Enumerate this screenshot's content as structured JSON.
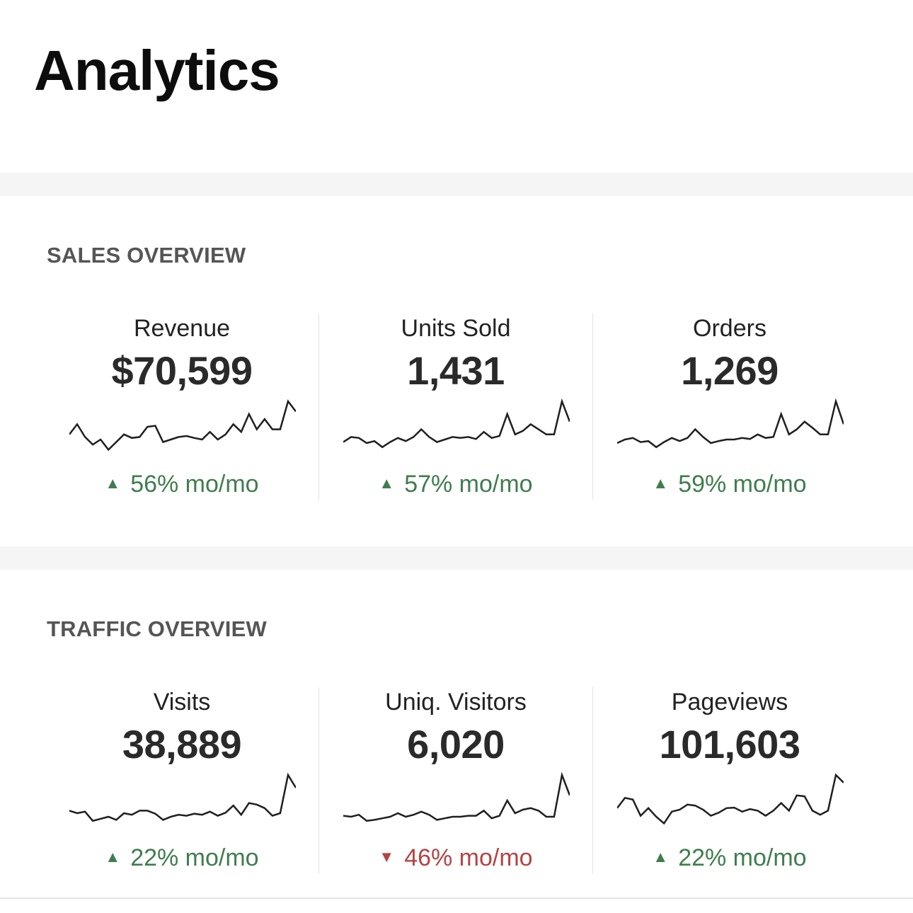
{
  "page": {
    "title": "Analytics"
  },
  "sections": [
    {
      "title": "SALES OVERVIEW",
      "metrics": [
        {
          "label": "Revenue",
          "value": "$70,599",
          "direction": "up",
          "arrow": "▲",
          "change": "56% mo/mo",
          "trend": [
            0.35,
            0.55,
            0.3,
            0.15,
            0.25,
            0.05,
            0.2,
            0.35,
            0.28,
            0.3,
            0.5,
            0.52,
            0.2,
            0.25,
            0.3,
            0.32,
            0.28,
            0.25,
            0.4,
            0.25,
            0.35,
            0.55,
            0.4,
            0.75,
            0.45,
            0.65,
            0.45,
            0.45,
            1.0,
            0.8
          ]
        },
        {
          "label": "Units Sold",
          "value": "1,431",
          "direction": "up",
          "arrow": "▲",
          "change": "57% mo/mo",
          "trend": [
            0.2,
            0.3,
            0.28,
            0.18,
            0.22,
            0.1,
            0.2,
            0.28,
            0.22,
            0.3,
            0.45,
            0.3,
            0.2,
            0.25,
            0.3,
            0.28,
            0.3,
            0.26,
            0.4,
            0.28,
            0.32,
            0.75,
            0.35,
            0.42,
            0.55,
            0.45,
            0.35,
            0.35,
            1.0,
            0.6
          ]
        },
        {
          "label": "Orders",
          "value": "1,269",
          "direction": "up",
          "arrow": "▲",
          "change": "59% mo/mo",
          "trend": [
            0.18,
            0.25,
            0.28,
            0.2,
            0.22,
            0.1,
            0.2,
            0.28,
            0.22,
            0.28,
            0.45,
            0.3,
            0.18,
            0.22,
            0.25,
            0.25,
            0.28,
            0.26,
            0.35,
            0.28,
            0.3,
            0.75,
            0.35,
            0.45,
            0.6,
            0.48,
            0.35,
            0.35,
            1.0,
            0.55
          ]
        }
      ]
    },
    {
      "title": "TRAFFIC OVERVIEW",
      "metrics": [
        {
          "label": "Visits",
          "value": "38,889",
          "direction": "up",
          "arrow": "▲",
          "change": "22% mo/mo",
          "trend": [
            0.3,
            0.25,
            0.28,
            0.1,
            0.14,
            0.18,
            0.12,
            0.25,
            0.22,
            0.3,
            0.3,
            0.24,
            0.12,
            0.18,
            0.22,
            0.2,
            0.24,
            0.22,
            0.28,
            0.2,
            0.26,
            0.4,
            0.22,
            0.45,
            0.42,
            0.35,
            0.2,
            0.25,
            1.0,
            0.75
          ]
        },
        {
          "label": "Uniq. Visitors",
          "value": "6,020",
          "direction": "down",
          "arrow": "▼",
          "change": "46% mo/mo",
          "trend": [
            0.2,
            0.18,
            0.22,
            0.1,
            0.12,
            0.15,
            0.18,
            0.25,
            0.18,
            0.22,
            0.28,
            0.22,
            0.12,
            0.15,
            0.18,
            0.18,
            0.2,
            0.2,
            0.3,
            0.15,
            0.2,
            0.5,
            0.25,
            0.32,
            0.35,
            0.3,
            0.18,
            0.18,
            1.0,
            0.6
          ]
        },
        {
          "label": "Pageviews",
          "value": "101,603",
          "direction": "up",
          "arrow": "▲",
          "change": "22% mo/mo",
          "trend": [
            0.35,
            0.55,
            0.52,
            0.2,
            0.35,
            0.18,
            0.05,
            0.28,
            0.32,
            0.42,
            0.4,
            0.32,
            0.2,
            0.26,
            0.35,
            0.36,
            0.28,
            0.33,
            0.3,
            0.2,
            0.3,
            0.45,
            0.3,
            0.6,
            0.58,
            0.3,
            0.22,
            0.3,
            1.0,
            0.85
          ]
        }
      ]
    }
  ]
}
